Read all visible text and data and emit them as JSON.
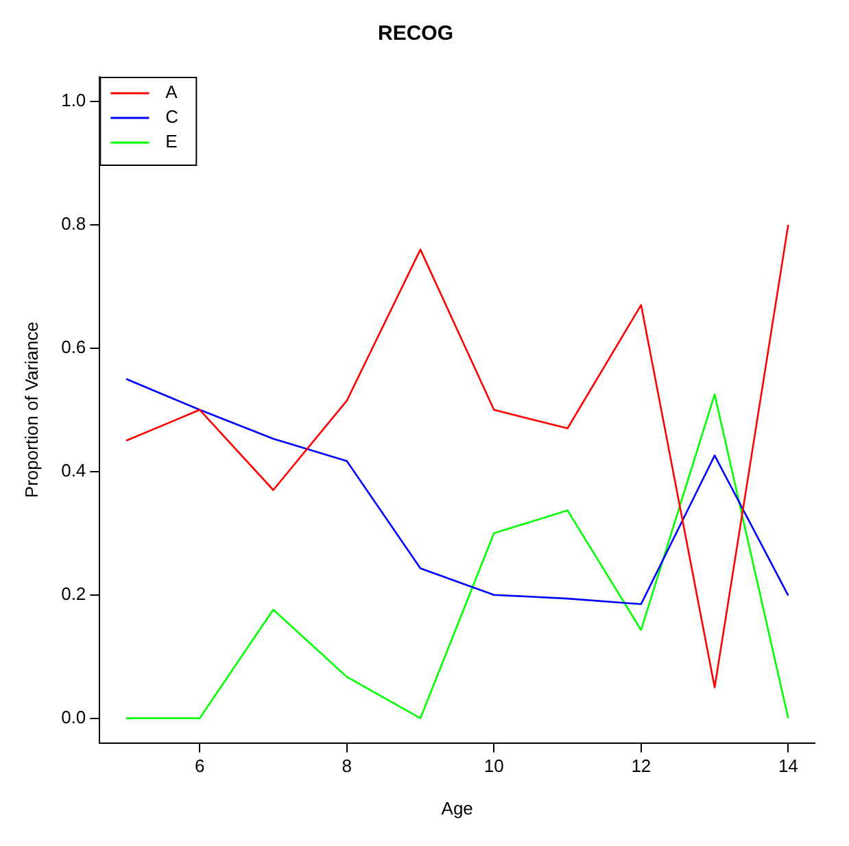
{
  "chart_data": {
    "type": "line",
    "title": "RECOG",
    "xlabel": "Age",
    "ylabel": "Proportion of Variance",
    "x": [
      5,
      6,
      7,
      8,
      9,
      10,
      11,
      12,
      13,
      14
    ],
    "series": [
      {
        "name": "A",
        "color": "#ff0000",
        "values": [
          0.45,
          0.5,
          0.37,
          0.515,
          0.76,
          0.5,
          0.47,
          0.67,
          0.05,
          0.8
        ]
      },
      {
        "name": "C",
        "color": "#0000ff",
        "values": [
          0.55,
          0.5,
          0.453,
          0.417,
          0.243,
          0.2,
          0.194,
          0.185,
          0.426,
          0.199
        ]
      },
      {
        "name": "E",
        "color": "#00ff00",
        "values": [
          0,
          0,
          0.176,
          0.067,
          0,
          0.3,
          0.337,
          0.143,
          0.525,
          0
        ]
      }
    ],
    "xlim": [
      4.64,
      14.36
    ],
    "xticks": [
      6,
      8,
      10,
      12,
      14
    ],
    "ylim": [
      -0.04,
      1.04
    ],
    "yticks": [
      {
        "value": 0,
        "label": "0.0"
      },
      {
        "value": 0.2,
        "label": "0.2"
      },
      {
        "value": 0.4,
        "label": "0.4"
      },
      {
        "value": 0.6,
        "label": "0.6"
      },
      {
        "value": 0.8,
        "label": "0.8"
      },
      {
        "value": 1,
        "label": "1.0"
      }
    ],
    "grid": false,
    "legend": "top left",
    "marker": "none",
    "line_style": "solid"
  }
}
